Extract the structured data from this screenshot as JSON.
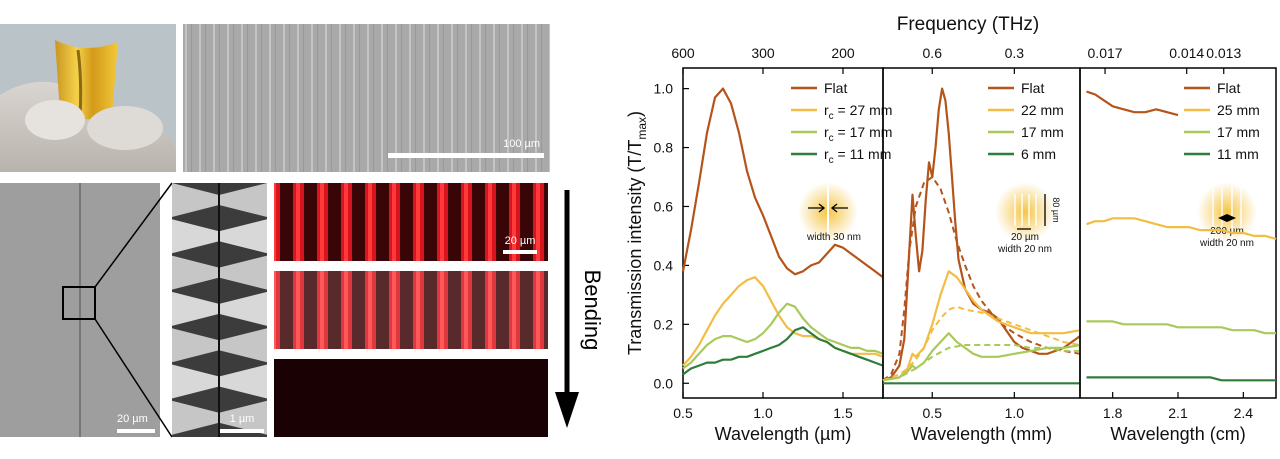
{
  "figure": {
    "scale_bars": {
      "sem_top": "100 µm",
      "sem_left": "20 µm",
      "sem_zoom": "1 µm",
      "fluorescence": "20 µm"
    },
    "bending_label": "Bending"
  },
  "colors": {
    "flat": "#b5541a",
    "c2": "#f2bd45",
    "c3": "#a9c95a",
    "c4": "#2f7d3a",
    "red": "#d8141c"
  },
  "chart_data": [
    {
      "type": "line",
      "title": "",
      "xlabel": "Wavelength (µm)",
      "ylabel": "Transmission intensity (T/T",
      "ylabel_sub": "max",
      "ylabel_close": ")",
      "xlim": [
        0.5,
        1.75
      ],
      "ylim": [
        -0.05,
        1.07
      ],
      "xticks": [
        0.5,
        1.0,
        1.5
      ],
      "xtick_labels": [
        "0.5",
        "1.0",
        "1.5"
      ],
      "yticks": [
        0.0,
        0.2,
        0.4,
        0.6,
        0.8,
        1.0
      ],
      "ytick_labels": [
        "0.0",
        "0.2",
        "0.4",
        "0.6",
        "0.8",
        "1.0"
      ],
      "top_axis": {
        "label": "Frequency (THz)",
        "tick_positions": [
          0.5,
          1.0,
          1.5
        ],
        "tick_labels": [
          "600",
          "300",
          "200"
        ]
      },
      "legend": [
        {
          "name": "Flat",
          "sub": "",
          "suffix": ""
        },
        {
          "name": "r",
          "sub": "c",
          "suffix": " = 27 mm"
        },
        {
          "name": "r",
          "sub": "c",
          "suffix": " = 17 mm"
        },
        {
          "name": "r",
          "sub": "c",
          "suffix": " = 11 mm"
        }
      ],
      "inset_label": "width 30 nm",
      "series": [
        {
          "name": "Flat",
          "x": [
            0.5,
            0.55,
            0.6,
            0.65,
            0.7,
            0.75,
            0.8,
            0.85,
            0.9,
            0.95,
            1.0,
            1.05,
            1.1,
            1.15,
            1.2,
            1.25,
            1.3,
            1.35,
            1.4,
            1.45,
            1.5,
            1.55,
            1.6,
            1.65,
            1.7,
            1.75
          ],
          "y": [
            0.38,
            0.52,
            0.68,
            0.85,
            0.97,
            1.0,
            0.95,
            0.85,
            0.72,
            0.63,
            0.57,
            0.5,
            0.43,
            0.39,
            0.37,
            0.38,
            0.4,
            0.41,
            0.44,
            0.47,
            0.46,
            0.44,
            0.42,
            0.4,
            0.38,
            0.36
          ]
        },
        {
          "name": "rc = 27 mm",
          "x": [
            0.5,
            0.55,
            0.6,
            0.65,
            0.7,
            0.75,
            0.8,
            0.85,
            0.9,
            0.95,
            1.0,
            1.05,
            1.1,
            1.15,
            1.2,
            1.25,
            1.3,
            1.35,
            1.4,
            1.45,
            1.5,
            1.55,
            1.6,
            1.65,
            1.7,
            1.75
          ],
          "y": [
            0.06,
            0.09,
            0.13,
            0.18,
            0.23,
            0.27,
            0.3,
            0.33,
            0.35,
            0.36,
            0.33,
            0.28,
            0.23,
            0.19,
            0.17,
            0.16,
            0.16,
            0.15,
            0.14,
            0.12,
            0.11,
            0.1,
            0.1,
            0.1,
            0.1,
            0.09
          ]
        },
        {
          "name": "rc = 17 mm",
          "x": [
            0.5,
            0.55,
            0.6,
            0.65,
            0.7,
            0.75,
            0.8,
            0.85,
            0.9,
            0.95,
            1.0,
            1.05,
            1.1,
            1.15,
            1.2,
            1.25,
            1.3,
            1.35,
            1.4,
            1.45,
            1.5,
            1.55,
            1.6,
            1.65,
            1.7,
            1.75
          ],
          "y": [
            0.05,
            0.07,
            0.1,
            0.13,
            0.15,
            0.16,
            0.16,
            0.15,
            0.14,
            0.15,
            0.17,
            0.2,
            0.24,
            0.27,
            0.26,
            0.22,
            0.19,
            0.17,
            0.15,
            0.14,
            0.13,
            0.12,
            0.12,
            0.11,
            0.11,
            0.1
          ]
        },
        {
          "name": "rc = 11 mm",
          "x": [
            0.5,
            0.55,
            0.6,
            0.65,
            0.7,
            0.75,
            0.8,
            0.85,
            0.9,
            0.95,
            1.0,
            1.05,
            1.1,
            1.15,
            1.2,
            1.25,
            1.3,
            1.35,
            1.4,
            1.45,
            1.5,
            1.55,
            1.6,
            1.65,
            1.7,
            1.75
          ],
          "y": [
            0.03,
            0.05,
            0.06,
            0.07,
            0.07,
            0.08,
            0.08,
            0.09,
            0.09,
            0.1,
            0.11,
            0.12,
            0.13,
            0.15,
            0.18,
            0.19,
            0.17,
            0.15,
            0.14,
            0.12,
            0.11,
            0.1,
            0.09,
            0.08,
            0.07,
            0.06
          ]
        }
      ]
    },
    {
      "type": "line",
      "title": "",
      "xlabel": "Wavelength (mm)",
      "xlim": [
        0.2,
        1.4
      ],
      "ylim": [
        -0.05,
        1.07
      ],
      "xticks": [
        0.5,
        1.0
      ],
      "xtick_labels": [
        "0.5",
        "1.0"
      ],
      "top_axis": {
        "tick_positions": [
          0.5,
          1.0
        ],
        "tick_labels": [
          "0.6",
          "0.3"
        ]
      },
      "legend": [
        {
          "name": "Flat"
        },
        {
          "name": "22 mm"
        },
        {
          "name": "17 mm"
        },
        {
          "name": "6 mm"
        }
      ],
      "inset_label_height": "80 µm",
      "inset_label_gap": "20 µm",
      "inset_label": "width 20 nm",
      "series": [
        {
          "name": "Flat",
          "x": [
            0.2,
            0.25,
            0.3,
            0.33,
            0.36,
            0.38,
            0.4,
            0.42,
            0.44,
            0.46,
            0.48,
            0.5,
            0.52,
            0.54,
            0.56,
            0.58,
            0.6,
            0.62,
            0.64,
            0.66,
            0.7,
            0.75,
            0.8,
            0.85,
            0.9,
            0.95,
            1.0,
            1.05,
            1.1,
            1.15,
            1.2,
            1.25,
            1.3,
            1.35,
            1.4
          ],
          "y": [
            0.01,
            0.02,
            0.06,
            0.15,
            0.45,
            0.64,
            0.5,
            0.38,
            0.45,
            0.62,
            0.75,
            0.7,
            0.8,
            0.93,
            1.0,
            0.96,
            0.85,
            0.7,
            0.55,
            0.42,
            0.32,
            0.27,
            0.25,
            0.24,
            0.22,
            0.18,
            0.14,
            0.12,
            0.11,
            0.1,
            0.1,
            0.11,
            0.12,
            0.14,
            0.16
          ]
        },
        {
          "name": "Flat (sim)",
          "dashed": true,
          "x": [
            0.2,
            0.25,
            0.3,
            0.33,
            0.36,
            0.4,
            0.45,
            0.5,
            0.55,
            0.6,
            0.65,
            0.7,
            0.75,
            0.8,
            0.9,
            1.0,
            1.1,
            1.2,
            1.3,
            1.4
          ],
          "y": [
            0.01,
            0.03,
            0.1,
            0.25,
            0.45,
            0.6,
            0.68,
            0.7,
            0.66,
            0.58,
            0.48,
            0.4,
            0.33,
            0.28,
            0.21,
            0.17,
            0.14,
            0.12,
            0.11,
            0.1
          ]
        },
        {
          "name": "22 mm",
          "x": [
            0.2,
            0.3,
            0.35,
            0.38,
            0.4,
            0.45,
            0.5,
            0.55,
            0.6,
            0.65,
            0.7,
            0.75,
            0.8,
            0.9,
            1.0,
            1.1,
            1.2,
            1.3,
            1.4
          ],
          "y": [
            0.01,
            0.02,
            0.05,
            0.1,
            0.09,
            0.12,
            0.2,
            0.3,
            0.38,
            0.36,
            0.32,
            0.28,
            0.25,
            0.21,
            0.19,
            0.17,
            0.17,
            0.17,
            0.18
          ]
        },
        {
          "name": "22 mm (sim)",
          "dashed": true,
          "x": [
            0.2,
            0.3,
            0.35,
            0.4,
            0.45,
            0.5,
            0.55,
            0.6,
            0.65,
            0.7,
            0.8,
            0.9,
            1.0,
            1.1,
            1.2,
            1.3,
            1.4
          ],
          "y": [
            0.01,
            0.03,
            0.05,
            0.08,
            0.12,
            0.18,
            0.22,
            0.25,
            0.26,
            0.25,
            0.24,
            0.22,
            0.2,
            0.18,
            0.16,
            0.14,
            0.13
          ]
        },
        {
          "name": "17 mm",
          "x": [
            0.2,
            0.3,
            0.35,
            0.38,
            0.4,
            0.45,
            0.5,
            0.55,
            0.6,
            0.65,
            0.7,
            0.75,
            0.8,
            0.9,
            1.0,
            1.1,
            1.2,
            1.3,
            1.4
          ],
          "y": [
            0.01,
            0.02,
            0.04,
            0.06,
            0.05,
            0.07,
            0.11,
            0.14,
            0.17,
            0.14,
            0.12,
            0.1,
            0.09,
            0.09,
            0.1,
            0.11,
            0.12,
            0.12,
            0.13
          ]
        },
        {
          "name": "17 mm (sim)",
          "dashed": true,
          "x": [
            0.2,
            0.3,
            0.4,
            0.5,
            0.6,
            0.7,
            0.8,
            0.9,
            1.0,
            1.1,
            1.2,
            1.3,
            1.4
          ],
          "y": [
            0.01,
            0.02,
            0.05,
            0.09,
            0.12,
            0.13,
            0.13,
            0.13,
            0.13,
            0.12,
            0.12,
            0.11,
            0.11
          ]
        },
        {
          "name": "6 mm",
          "x": [
            0.2,
            0.4,
            0.6,
            0.8,
            1.0,
            1.2,
            1.4
          ],
          "y": [
            0.0,
            0.0,
            0.0,
            0.0,
            0.0,
            0.0,
            0.0
          ]
        }
      ]
    },
    {
      "type": "line",
      "title": "",
      "xlabel": "Wavelength (cm)",
      "xlim": [
        1.65,
        2.55
      ],
      "ylim": [
        -0.05,
        1.07
      ],
      "xticks": [
        1.8,
        2.1,
        2.4
      ],
      "xtick_labels": [
        "1.8",
        "2.1",
        "2.4"
      ],
      "top_axis": {
        "tick_positions": [
          1.765,
          2.14,
          2.31
        ],
        "tick_labels": [
          "0.017",
          "0.014",
          "0.013"
        ]
      },
      "legend": [
        {
          "name": "Flat"
        },
        {
          "name": "25 mm"
        },
        {
          "name": "17 mm"
        },
        {
          "name": "11 mm"
        }
      ],
      "inset_label_gap": "200 µm",
      "inset_label": "width 20 nm",
      "series": [
        {
          "name": "Flat",
          "x": [
            1.68,
            1.72,
            1.76,
            1.8,
            1.85,
            1.9,
            1.95,
            2.0,
            2.05,
            2.1
          ],
          "y": [
            0.99,
            0.98,
            0.96,
            0.94,
            0.93,
            0.92,
            0.92,
            0.93,
            0.92,
            0.91
          ]
        },
        {
          "name": "25 mm",
          "x": [
            1.68,
            1.72,
            1.76,
            1.8,
            1.85,
            1.9,
            1.95,
            2.0,
            2.05,
            2.1,
            2.15,
            2.2,
            2.25,
            2.3,
            2.35,
            2.4,
            2.45,
            2.5,
            2.55
          ],
          "y": [
            0.54,
            0.55,
            0.55,
            0.56,
            0.56,
            0.56,
            0.55,
            0.54,
            0.53,
            0.53,
            0.53,
            0.52,
            0.52,
            0.52,
            0.51,
            0.51,
            0.5,
            0.5,
            0.49
          ]
        },
        {
          "name": "17 mm",
          "x": [
            1.68,
            1.72,
            1.76,
            1.8,
            1.85,
            1.9,
            1.95,
            2.0,
            2.05,
            2.1,
            2.15,
            2.2,
            2.25,
            2.3,
            2.35,
            2.4,
            2.45,
            2.5,
            2.55
          ],
          "y": [
            0.21,
            0.21,
            0.21,
            0.21,
            0.2,
            0.2,
            0.2,
            0.2,
            0.2,
            0.19,
            0.19,
            0.19,
            0.19,
            0.19,
            0.18,
            0.18,
            0.18,
            0.17,
            0.17
          ]
        },
        {
          "name": "11 mm",
          "x": [
            1.68,
            1.72,
            1.76,
            1.8,
            1.85,
            1.9,
            1.95,
            2.0,
            2.05,
            2.1,
            2.15,
            2.2,
            2.25,
            2.3,
            2.35,
            2.4,
            2.45,
            2.5,
            2.55
          ],
          "y": [
            0.02,
            0.02,
            0.02,
            0.02,
            0.02,
            0.02,
            0.02,
            0.02,
            0.02,
            0.02,
            0.02,
            0.02,
            0.02,
            0.01,
            0.01,
            0.01,
            0.01,
            0.01,
            0.01
          ]
        }
      ]
    }
  ]
}
